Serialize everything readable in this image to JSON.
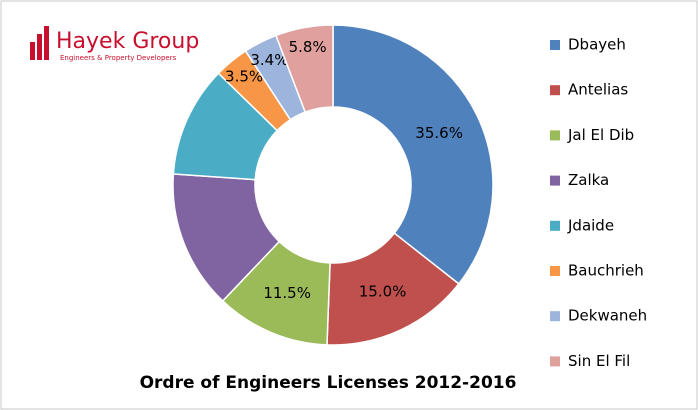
{
  "logo": {
    "name": "Hayek Group",
    "tagline": "Engineers & Property Developers"
  },
  "chart_data": {
    "type": "pie",
    "title": "Ordre of Engineers Licenses 2012-2016",
    "categories": [
      "Dbayeh",
      "Antelias",
      "Jal El Dib",
      "Zalka",
      "Jdaide",
      "Bauchrieh",
      "Dekwaneh",
      "Sin El Fil"
    ],
    "values": [
      35.6,
      15.0,
      11.5,
      14.0,
      11.2,
      3.5,
      3.4,
      5.8
    ],
    "value_labels": [
      "35.6%",
      "15.0%",
      "11.5%",
      null,
      null,
      "3.5%",
      "3.4%",
      "5.8%"
    ],
    "colors": [
      "#4f81bd",
      "#c0504d",
      "#9bbb59",
      "#8064a2",
      "#4bacc6",
      "#f79646",
      "#9db4dc",
      "#e0a09e"
    ],
    "legend": "right"
  }
}
